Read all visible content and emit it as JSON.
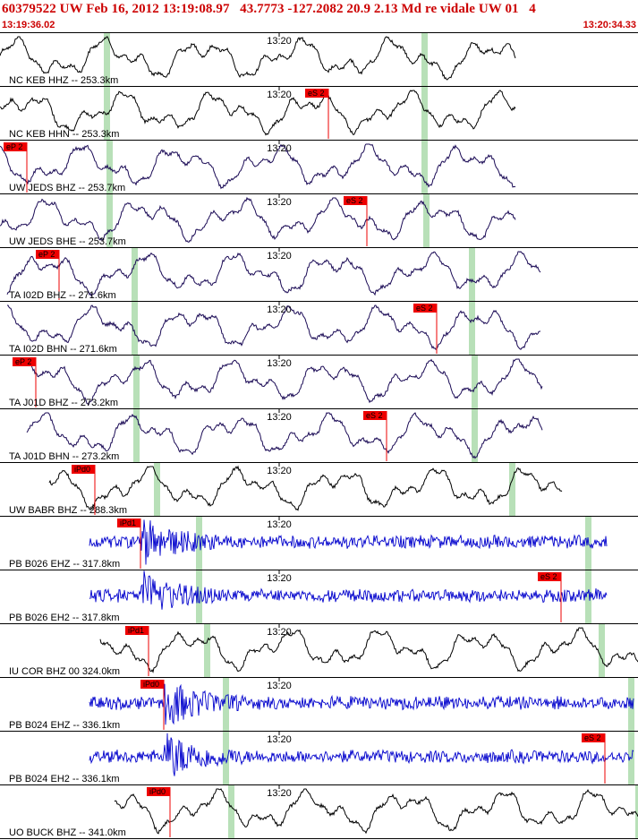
{
  "header": {
    "title": "60379522 UW Feb 16, 2012 13:19:08.97   43.7773 -127.2082 20.9 2.13 Md re vidale UW 01   4",
    "start_time": "13:19:36.02",
    "end_time": "13:20:34.33"
  },
  "colors": {
    "header_text": "#cc0000",
    "pick": "#ee0000",
    "green": "#b8e0b8",
    "trace_black": "#000000",
    "trace_navy": "#1a0a55",
    "trace_blue": "#0000cc"
  },
  "chart_data": {
    "type": "line",
    "title": "60379522 UW Feb 16, 2012 13:19:08.97   43.7773 -127.2082 20.9 2.13 Md re vidale UW 01   4",
    "x_range": [
      "13:19:36.02",
      "13:20:34.33"
    ],
    "tick_label": "13:20",
    "traces": [
      {
        "label": "NC KEB HHZ -- 253.3km",
        "color": "black",
        "kind": "long",
        "picks": [],
        "green": [
          119,
          474
        ]
      },
      {
        "label": "NC KEB HHN -- 253.3km",
        "color": "black",
        "kind": "long",
        "picks": [
          {
            "name": "eS 2",
            "x": 367
          }
        ],
        "green": [
          119,
          474
        ]
      },
      {
        "label": "UW JEDS BHZ -- 253.7km",
        "color": "navy",
        "kind": "long",
        "picks": [
          {
            "name": "eP 2",
            "x": 30
          }
        ],
        "green": [
          122,
          474
        ]
      },
      {
        "label": "UW JEDS BHE -- 253.7km",
        "color": "navy",
        "kind": "long",
        "picks": [
          {
            "name": "eS 2",
            "x": 410
          }
        ],
        "green": [
          122,
          476
        ]
      },
      {
        "label": "TA I02D BHZ -- 271.6km",
        "color": "navy",
        "kind": "long",
        "picks": [
          {
            "name": "eP 2",
            "x": 66
          }
        ],
        "green": [
          150,
          527
        ]
      },
      {
        "label": "TA I02D BHN -- 271.6km",
        "color": "navy",
        "kind": "long",
        "picks": [
          {
            "name": "eS 2",
            "x": 488
          }
        ],
        "green": [
          150,
          527
        ]
      },
      {
        "label": "TA J01D BHZ -- 273.2km",
        "color": "navy",
        "kind": "long",
        "picks": [
          {
            "name": "eP 2",
            "x": 40
          }
        ],
        "green": [
          152,
          530
        ]
      },
      {
        "label": "TA J01D BHN -- 273.2km",
        "color": "navy",
        "kind": "long",
        "picks": [
          {
            "name": "eS 2",
            "x": 432
          }
        ],
        "green": [
          152,
          530
        ]
      },
      {
        "label": "UW BABR BHZ -- 288.3km",
        "color": "black",
        "kind": "long",
        "picks": [
          {
            "name": "iPd0",
            "x": 106
          }
        ],
        "green": [
          175,
          572
        ]
      },
      {
        "label": "PB B026 EHZ -- 317.8km",
        "color": "blue",
        "kind": "short",
        "picks": [
          {
            "name": "iPd1",
            "x": 157
          }
        ],
        "green": [
          222,
          657
        ]
      },
      {
        "label": "PB B026 EH2 -- 317.8km",
        "color": "blue",
        "kind": "short",
        "picks": [
          {
            "name": "eS 2",
            "x": 627
          }
        ],
        "green": [
          222,
          657
        ]
      },
      {
        "label": "IU COR BHZ 00 324.0km",
        "color": "black",
        "kind": "long",
        "picks": [
          {
            "name": "iPd1",
            "x": 166
          }
        ],
        "green": [
          231,
          672
        ]
      },
      {
        "label": "PB B024 EHZ -- 336.1km",
        "color": "blue",
        "kind": "short",
        "picks": [
          {
            "name": "iPd0",
            "x": 183
          }
        ],
        "green": [
          252,
          705
        ]
      },
      {
        "label": "PB B024 EH2 -- 336.1km",
        "color": "blue",
        "kind": "short",
        "picks": [
          {
            "name": "eS 2",
            "x": 676
          }
        ],
        "green": [
          252,
          705
        ]
      },
      {
        "label": "UO BUCK BHZ -- 341.0km",
        "color": "black",
        "kind": "long",
        "picks": [
          {
            "name": "iPd0",
            "x": 190
          }
        ],
        "green": [
          258,
          713
        ]
      }
    ]
  }
}
